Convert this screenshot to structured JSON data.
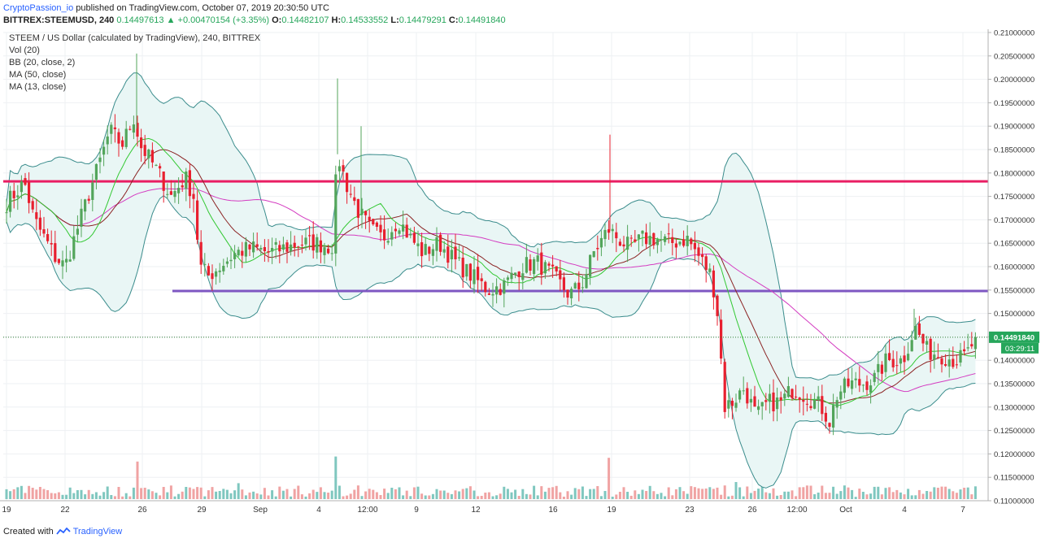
{
  "header": {
    "author": "CryptoPassion_io",
    "published_text": "published on TradingView.com, October 07, 2019 20:30:50 UTC",
    "symbol": "BITTREX:STEEMUSD, 240",
    "last": "0.14497613",
    "change": "+0.00470154 (+3.35%)",
    "o_label": "O:",
    "o": "0.14482107",
    "h_label": "H:",
    "h": "0.14533552",
    "l_label": "L:",
    "l": "0.14479291",
    "c_label": "C:",
    "c": "0.14491840"
  },
  "legend": {
    "title": "STEEM / US Dollar (calculated by TradingView), 240, BITTREX",
    "items": [
      "Vol (20)",
      "BB (20, close, 2)",
      "MA (50, close)",
      "MA (13, close)"
    ]
  },
  "footer": {
    "created_with": "Created with",
    "brand": "TradingView"
  },
  "price_label": "0.14491840",
  "countdown_label": "03:29:11",
  "colors": {
    "up": "#53a55b",
    "down": "#e8202f",
    "vol_up": "#7fc7bf",
    "vol_down": "#f0a3a3",
    "bb_line": "#3a8c8c",
    "bb_fill": "#e9f6f5",
    "ma50": "#d43cc1",
    "ma13_a": "#32c832",
    "ma13_b": "#8b2323",
    "resistance": "#e91e63",
    "support": "#7e57c2",
    "accent": "#2962ff"
  },
  "chart_data": {
    "type": "candlestick",
    "y_axis": {
      "min": 0.11,
      "max": 0.21,
      "position": "right",
      "ticks": [
        "0.21000000",
        "0.20500000",
        "0.20000000",
        "0.19500000",
        "0.19000000",
        "0.18500000",
        "0.18000000",
        "0.17500000",
        "0.17000000",
        "0.16500000",
        "0.16000000",
        "0.15500000",
        "0.15000000",
        "0.14500000",
        "0.14000000",
        "0.13500000",
        "0.13000000",
        "0.12500000",
        "0.12000000",
        "0.11500000",
        "0.11000000"
      ]
    },
    "x_axis": {
      "ticks": [
        "19",
        "22",
        "26",
        "29",
        "Sep",
        "4",
        "12:00",
        "9",
        "12",
        "16",
        "19",
        "23",
        "26",
        "12:00",
        "Oct",
        "4",
        "7"
      ]
    },
    "grid": true,
    "levels": [
      {
        "kind": "resistance",
        "value": 0.1782
      },
      {
        "kind": "support",
        "value": 0.1548
      }
    ],
    "current_price": 0.1449184,
    "price_path": [
      [
        0,
        0.172
      ],
      [
        15,
        0.175
      ],
      [
        30,
        0.178
      ],
      [
        42,
        0.17
      ],
      [
        55,
        0.166
      ],
      [
        68,
        0.162
      ],
      [
        80,
        0.16
      ],
      [
        95,
        0.168
      ],
      [
        110,
        0.176
      ],
      [
        122,
        0.182
      ],
      [
        135,
        0.189
      ],
      [
        150,
        0.186
      ],
      [
        165,
        0.192
      ],
      [
        172,
        0.186
      ],
      [
        180,
        0.184
      ],
      [
        195,
        0.18
      ],
      [
        210,
        0.175
      ],
      [
        228,
        0.179
      ],
      [
        238,
        0.175
      ],
      [
        246,
        0.16
      ],
      [
        256,
        0.158
      ],
      [
        270,
        0.16
      ],
      [
        290,
        0.163
      ],
      [
        310,
        0.164
      ],
      [
        330,
        0.163
      ],
      [
        350,
        0.164
      ],
      [
        370,
        0.165
      ],
      [
        390,
        0.165
      ],
      [
        408,
        0.164
      ],
      [
        415,
        0.184
      ],
      [
        425,
        0.178
      ],
      [
        440,
        0.172
      ],
      [
        455,
        0.168
      ],
      [
        470,
        0.166
      ],
      [
        490,
        0.17
      ],
      [
        505,
        0.166
      ],
      [
        520,
        0.163
      ],
      [
        540,
        0.165
      ],
      [
        560,
        0.161
      ],
      [
        580,
        0.158
      ],
      [
        600,
        0.155
      ],
      [
        620,
        0.156
      ],
      [
        640,
        0.16
      ],
      [
        660,
        0.161
      ],
      [
        680,
        0.158
      ],
      [
        700,
        0.154
      ],
      [
        715,
        0.156
      ],
      [
        730,
        0.163
      ],
      [
        748,
        0.168
      ],
      [
        760,
        0.166
      ],
      [
        775,
        0.164
      ],
      [
        790,
        0.166
      ],
      [
        805,
        0.166
      ],
      [
        825,
        0.165
      ],
      [
        845,
        0.166
      ],
      [
        860,
        0.162
      ],
      [
        875,
        0.158
      ],
      [
        884,
        0.148
      ],
      [
        890,
        0.13
      ],
      [
        900,
        0.131
      ],
      [
        915,
        0.134
      ],
      [
        930,
        0.128
      ],
      [
        945,
        0.131
      ],
      [
        960,
        0.131
      ],
      [
        975,
        0.134
      ],
      [
        995,
        0.132
      ],
      [
        1010,
        0.13
      ],
      [
        1020,
        0.127
      ],
      [
        1030,
        0.133
      ],
      [
        1045,
        0.135
      ],
      [
        1060,
        0.135
      ],
      [
        1075,
        0.136
      ],
      [
        1090,
        0.14
      ],
      [
        1110,
        0.14
      ],
      [
        1125,
        0.147
      ],
      [
        1140,
        0.142
      ],
      [
        1160,
        0.141
      ],
      [
        1175,
        0.14
      ],
      [
        1188,
        0.141
      ],
      [
        1200,
        0.1449
      ]
    ],
    "volume": {
      "spikes": [
        [
          168,
          0.3
        ],
        [
          415,
          0.34
        ],
        [
          750,
          0.33
        ],
        [
          295,
          0.14
        ],
        [
          440,
          0.12
        ],
        [
          1040,
          0.12
        ],
        [
          1185,
          0.1
        ],
        [
          1160,
          0.11
        ],
        [
          905,
          0.15
        ],
        [
          890,
          0.12
        ],
        [
          110,
          0.08
        ],
        [
          480,
          0.1
        ],
        [
          940,
          0.06
        ]
      ]
    }
  }
}
